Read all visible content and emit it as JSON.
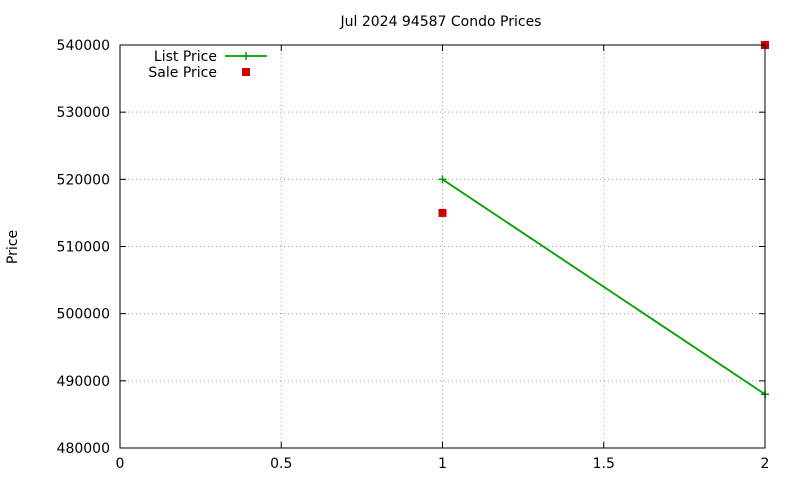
{
  "chart_data": {
    "type": "line",
    "title": "Jul 2024 94587 Condo Prices",
    "xlabel": "",
    "ylabel": "Price",
    "xlim": [
      0,
      2
    ],
    "ylim": [
      480000,
      540000
    ],
    "x_ticks": [
      "0",
      "0.5",
      "1",
      "1.5",
      "2"
    ],
    "y_ticks": [
      "480000",
      "490000",
      "500000",
      "510000",
      "520000",
      "530000",
      "540000"
    ],
    "grid": true,
    "legend_position": "top-left",
    "series": [
      {
        "name": "List Price",
        "style": "line-with-plus-markers",
        "color": "#009e00",
        "points": [
          {
            "x": 1,
            "y": 520000
          },
          {
            "x": 2,
            "y": 488000
          }
        ]
      },
      {
        "name": "Sale Price",
        "style": "square-markers",
        "color": "#cc0000",
        "points": [
          {
            "x": 1,
            "y": 515000
          },
          {
            "x": 2,
            "y": 540000
          }
        ]
      }
    ]
  }
}
